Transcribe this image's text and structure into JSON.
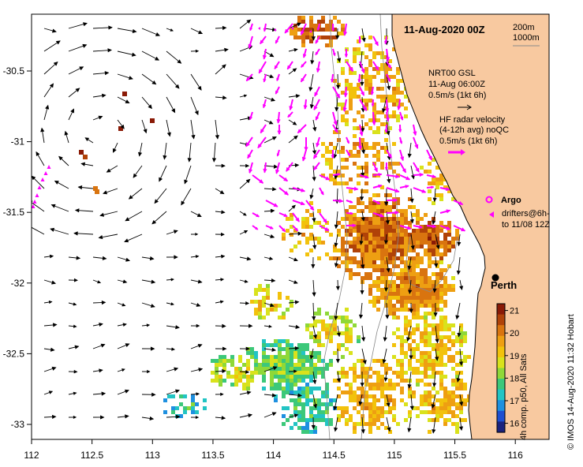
{
  "title": "11-Aug-2020 00Z",
  "depth_legend": [
    "200m",
    "1000m"
  ],
  "legend": {
    "nrt_line1": "NRT00 GSL",
    "nrt_line2": "11-Aug 06:00Z",
    "nrt_scale": "0.5m/s (1kt 6h)",
    "hf_line1": "HF radar velocity",
    "hf_line2": "(4-12h avg) noQC",
    "hf_scale": "0.5m/s (1kt 6h)",
    "argo_label": "Argo",
    "drifters_line1": "drifters@6h-",
    "drifters_line2": "to 11/08 12Z"
  },
  "city": "Perth",
  "colorbar": {
    "label": "4h comp. p50, All Sats",
    "ticks": [
      "21",
      "20",
      "19",
      "18",
      "17",
      "16"
    ],
    "min": 15.6,
    "max": 21.3
  },
  "credit": "© IMOS 14-Aug-2020 11:32 Hobart",
  "axes": {
    "x_ticks": [
      "112",
      "112.5",
      "113",
      "113.5",
      "114",
      "114.5",
      "115",
      "115.5",
      "116"
    ],
    "y_ticks": [
      "-30.5",
      "-31",
      "-31.5",
      "-32",
      "-32.5",
      "-33"
    ],
    "lon_range": [
      112,
      116.3
    ],
    "lat_range": [
      -33.1,
      -30.05
    ]
  },
  "colors": {
    "land": "#f8c9a0",
    "vector": "#000000",
    "hf_vector": "#ff00ff",
    "sst_ramp": [
      "#1a237e",
      "#1e4fd0",
      "#1e90e0",
      "#22c4c4",
      "#3cc87a",
      "#8fd838",
      "#d9e21c",
      "#f2c20c",
      "#ee9f12",
      "#d9740f",
      "#b04208",
      "#8a1a06"
    ]
  }
}
